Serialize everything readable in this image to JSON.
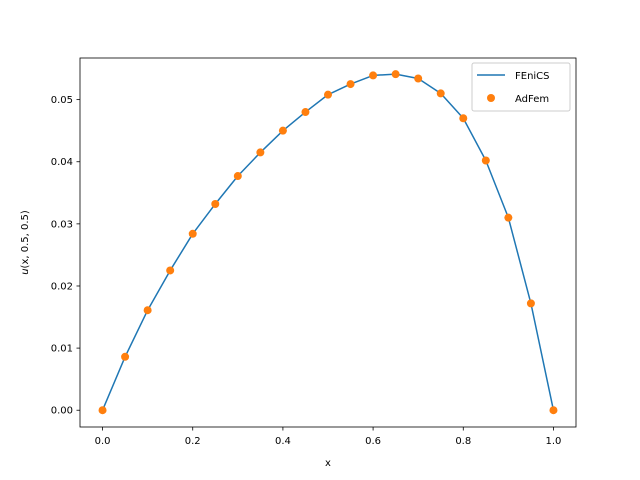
{
  "chart_data": {
    "type": "line",
    "xlabel": "x",
    "ylabel": "u(x, 0.5, 0.5)",
    "xlim": [
      -0.05,
      1.05
    ],
    "ylim": [
      -0.0027,
      0.0567
    ],
    "xticks": [
      0.0,
      0.2,
      0.4,
      0.6,
      0.8,
      1.0
    ],
    "xtick_labels": [
      "0.0",
      "0.2",
      "0.4",
      "0.6",
      "0.8",
      "1.0"
    ],
    "yticks": [
      0.0,
      0.01,
      0.02,
      0.03,
      0.04,
      0.05
    ],
    "ytick_labels": [
      "0.00",
      "0.01",
      "0.02",
      "0.03",
      "0.04",
      "0.05"
    ],
    "grid": false,
    "legend": "top-right",
    "series": [
      {
        "name": "FEniCS",
        "style": "line",
        "color": "#1f77b4",
        "x": [
          0.0,
          0.05,
          0.1,
          0.15,
          0.2,
          0.25,
          0.3,
          0.35,
          0.4,
          0.45,
          0.5,
          0.55,
          0.6,
          0.65,
          0.7,
          0.75,
          0.8,
          0.85,
          0.9,
          0.95,
          1.0
        ],
        "y": [
          0.0,
          0.0086,
          0.0161,
          0.0225,
          0.0284,
          0.0332,
          0.0377,
          0.0415,
          0.045,
          0.048,
          0.0508,
          0.0525,
          0.0539,
          0.0541,
          0.0534,
          0.051,
          0.047,
          0.0402,
          0.031,
          0.0172,
          0.0
        ]
      },
      {
        "name": "AdFem",
        "style": "markers",
        "color": "#ff7f0e",
        "x": [
          0.0,
          0.05,
          0.1,
          0.15,
          0.2,
          0.25,
          0.3,
          0.35,
          0.4,
          0.45,
          0.5,
          0.55,
          0.6,
          0.65,
          0.7,
          0.75,
          0.8,
          0.85,
          0.9,
          0.95,
          1.0
        ],
        "y": [
          0.0,
          0.0086,
          0.0161,
          0.0225,
          0.0284,
          0.0332,
          0.0377,
          0.0415,
          0.045,
          0.048,
          0.0508,
          0.0525,
          0.0539,
          0.0541,
          0.0534,
          0.051,
          0.047,
          0.0402,
          0.031,
          0.0172,
          0.0
        ]
      }
    ]
  }
}
